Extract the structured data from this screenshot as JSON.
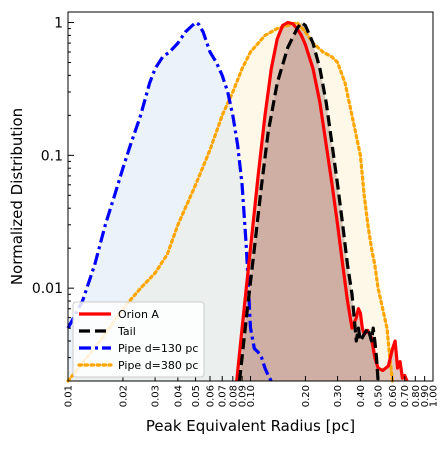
{
  "chart_data": {
    "type": "area",
    "xlabel": "Peak Equivalent Radius [pc]",
    "ylabel": "Normalized Distribution",
    "x_scale": "log",
    "y_scale": "log",
    "xlim": [
      0.01,
      1.0
    ],
    "ylim": [
      0.002,
      1.2
    ],
    "grid": false,
    "legend_position": "bottom-left",
    "x_ticks": [
      "0.01",
      "0.02",
      "0.03",
      "0.04",
      "0.05",
      "0.06",
      "0.07",
      "0.08",
      "0.09",
      "0.10",
      "0.20",
      "0.30",
      "0.40",
      "0.50",
      "0.60",
      "0.70",
      "0.80",
      "0.90",
      "1.00"
    ],
    "y_ticks": [
      "1",
      "0.1",
      "0.01"
    ],
    "series": [
      {
        "name": "Orion A",
        "color": "#ff0000",
        "fill": "#c89a90",
        "linestyle": "solid",
        "x": [
          0.084,
          0.09,
          0.1,
          0.11,
          0.12,
          0.13,
          0.14,
          0.15,
          0.16,
          0.17,
          0.18,
          0.19,
          0.2,
          0.22,
          0.24,
          0.26,
          0.28,
          0.3,
          0.32,
          0.34,
          0.36,
          0.38,
          0.39,
          0.4,
          0.41,
          0.42,
          0.44,
          0.46,
          0.48,
          0.5,
          0.53,
          0.57,
          0.6,
          0.62,
          0.64,
          0.66,
          0.68,
          0.7,
          0.72
        ],
        "y": [
          0.002,
          0.005,
          0.02,
          0.07,
          0.2,
          0.45,
          0.75,
          0.95,
          1.0,
          0.98,
          0.9,
          0.8,
          0.68,
          0.45,
          0.25,
          0.12,
          0.06,
          0.03,
          0.015,
          0.008,
          0.005,
          0.006,
          0.007,
          0.0065,
          0.005,
          0.0045,
          0.0048,
          0.0042,
          0.003,
          0.0025,
          0.0024,
          0.0026,
          0.0035,
          0.004,
          0.0025,
          0.0028,
          0.0021,
          0.0022,
          0.002
        ]
      },
      {
        "name": "Tail",
        "color": "#000000",
        "fill": "#b8a098",
        "linestyle": "dashed",
        "x": [
          0.087,
          0.095,
          0.105,
          0.115,
          0.125,
          0.14,
          0.16,
          0.18,
          0.19,
          0.2,
          0.22,
          0.24,
          0.26,
          0.28,
          0.3,
          0.32,
          0.34,
          0.36,
          0.37,
          0.38,
          0.39,
          0.4,
          0.42,
          0.44,
          0.46,
          0.47,
          0.48,
          0.49,
          0.5
        ],
        "y": [
          0.002,
          0.006,
          0.02,
          0.06,
          0.15,
          0.35,
          0.65,
          0.9,
          1.0,
          0.95,
          0.7,
          0.45,
          0.25,
          0.12,
          0.06,
          0.03,
          0.015,
          0.009,
          0.006,
          0.004,
          0.005,
          0.004,
          0.0045,
          0.005,
          0.004,
          0.005,
          0.004,
          0.003,
          0.002
        ]
      },
      {
        "name": "Pipe d=130 pc",
        "color": "#0000ff",
        "fill": "#dce8f4",
        "linestyle": "dashdot",
        "x": [
          0.01,
          0.012,
          0.014,
          0.016,
          0.018,
          0.02,
          0.022,
          0.025,
          0.028,
          0.03,
          0.033,
          0.036,
          0.04,
          0.044,
          0.048,
          0.05,
          0.052,
          0.055,
          0.06,
          0.065,
          0.07,
          0.075,
          0.08,
          0.085,
          0.09,
          0.095,
          0.1,
          0.105,
          0.11,
          0.115,
          0.12,
          0.125,
          0.13
        ],
        "y": [
          0.005,
          0.008,
          0.015,
          0.03,
          0.05,
          0.08,
          0.12,
          0.2,
          0.35,
          0.45,
          0.55,
          0.6,
          0.7,
          0.85,
          0.95,
          1.0,
          0.97,
          0.85,
          0.6,
          0.5,
          0.4,
          0.3,
          0.2,
          0.12,
          0.06,
          0.02,
          0.005,
          0.0035,
          0.0033,
          0.003,
          0.0025,
          0.0022,
          0.002
        ]
      },
      {
        "name": "Pipe d=380 pc",
        "color": "#ffa500",
        "fill": "#fbf3d4",
        "linestyle": "dotted",
        "x": [
          0.01,
          0.015,
          0.02,
          0.025,
          0.03,
          0.035,
          0.04,
          0.05,
          0.06,
          0.07,
          0.08,
          0.09,
          0.1,
          0.12,
          0.14,
          0.16,
          0.18,
          0.2,
          0.22,
          0.25,
          0.28,
          0.3,
          0.33,
          0.36,
          0.4,
          0.42,
          0.44,
          0.46,
          0.48,
          0.5,
          0.53,
          0.56,
          0.58,
          0.6
        ],
        "y": [
          0.002,
          0.004,
          0.007,
          0.01,
          0.013,
          0.018,
          0.03,
          0.06,
          0.11,
          0.2,
          0.3,
          0.45,
          0.6,
          0.8,
          0.9,
          0.95,
          1.0,
          0.85,
          0.7,
          0.6,
          0.55,
          0.5,
          0.35,
          0.2,
          0.1,
          0.05,
          0.03,
          0.02,
          0.015,
          0.01,
          0.007,
          0.005,
          0.003,
          0.002
        ]
      }
    ]
  }
}
